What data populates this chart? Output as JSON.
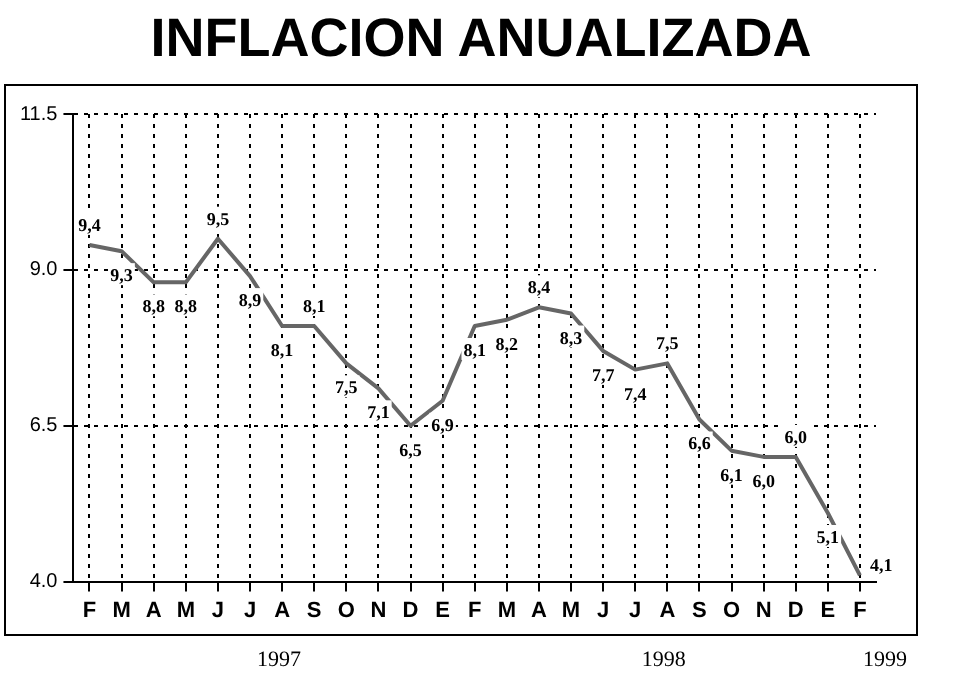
{
  "chart_data": {
    "type": "line",
    "title": "INFLACION  ANUALIZADA",
    "categories": [
      "F",
      "M",
      "A",
      "M",
      "J",
      "J",
      "A",
      "S",
      "O",
      "N",
      "D",
      "E",
      "F",
      "M",
      "A",
      "M",
      "J",
      "J",
      "A",
      "S",
      "O",
      "N",
      "D",
      "E",
      "F"
    ],
    "values": [
      9.4,
      9.3,
      8.8,
      8.8,
      9.5,
      8.9,
      8.1,
      8.1,
      7.5,
      7.1,
      6.5,
      6.9,
      8.1,
      8.2,
      8.4,
      8.3,
      7.7,
      7.4,
      7.5,
      6.6,
      6.1,
      6.0,
      6.0,
      5.1,
      4.1
    ],
    "value_labels": [
      "9,4",
      "9,3",
      "8,8",
      "8,8",
      "9,5",
      "8,9",
      "8,1",
      "8,1",
      "7,5",
      "7,1",
      "6,5",
      "6,9",
      "8,1",
      "8,2",
      "8,4",
      "8,3",
      "7,7",
      "7,4",
      "7,5",
      "6,6",
      "6,1",
      "6,0",
      "6,0",
      "5,1",
      "4,1"
    ],
    "color": "#666666",
    "ylim": [
      4.0,
      11.5
    ],
    "yticks": [
      {
        "value": 4.0,
        "label": "4.0"
      },
      {
        "value": 6.5,
        "label": "6.5"
      },
      {
        "value": 9.0,
        "label": "9.0"
      },
      {
        "value": 11.5,
        "label": "11.5"
      }
    ],
    "grid": true,
    "marker": "none",
    "line_style": "solid",
    "legend": false,
    "annotations": [
      "1997",
      "1998",
      "1999"
    ]
  }
}
